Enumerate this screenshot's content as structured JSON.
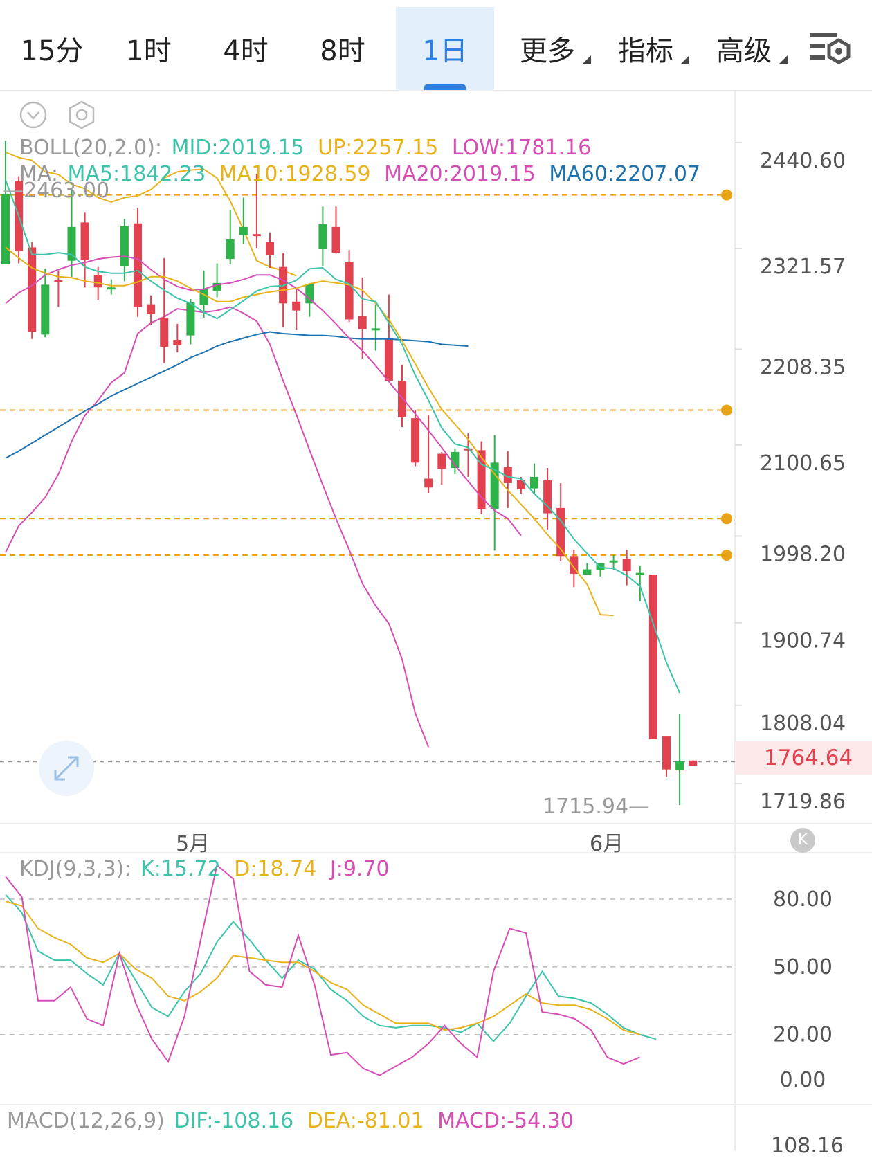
{
  "tabs": [
    {
      "label": "15分",
      "active": false,
      "dropdown": false
    },
    {
      "label": "1时",
      "active": false,
      "dropdown": false
    },
    {
      "label": "4时",
      "active": false,
      "dropdown": false
    },
    {
      "label": "8时",
      "active": false,
      "dropdown": false
    },
    {
      "label": "1日",
      "active": true,
      "dropdown": false
    },
    {
      "label": "更多",
      "active": false,
      "dropdown": true
    },
    {
      "label": "指标",
      "active": false,
      "dropdown": true
    },
    {
      "label": "高级",
      "active": false,
      "dropdown": true
    }
  ],
  "icons": {
    "settings": "chart-settings-icon",
    "collapse_circle": "chevron-down-circle-icon",
    "hexagon": "hexagon-settings-icon",
    "expand": "expand-arrows-icon",
    "k_badge": "K"
  },
  "legend": {
    "boll": {
      "name": "BOLL(20,2.0):",
      "mid": "MID:2019.15",
      "up": "UP:2257.15",
      "low": "LOW:1781.16"
    },
    "ma": {
      "name": "MA:",
      "ma5": "MA5:1842.23",
      "ma10": "MA10:1928.59",
      "ma20": "MA20:2019.15",
      "ma60": "MA60:2207.07"
    },
    "kdj": {
      "name": "KDJ(9,3,3):",
      "k": "K:15.72",
      "d": "D:18.74",
      "j": "J:9.70"
    },
    "macd": {
      "name": "MACD(12,26,9)",
      "dif": "DIF:-108.16",
      "dea": "DEA:-81.01",
      "macd": "MACD:-54.30"
    }
  },
  "colors": {
    "up": "#2eb24a",
    "down": "#e2424f",
    "ma5": "#3cc3aa",
    "ma10": "#e8b21a",
    "ma20": "#d64db5",
    "ma60": "#1f72b0",
    "accent": "#2f7fe0",
    "price_line": "#e8a317"
  },
  "chart_data": [
    {
      "type": "candlestick",
      "title": "",
      "x_labels": [
        "5月",
        "6月"
      ],
      "y_ticks": [
        "2440.60",
        "2321.57",
        "2208.35",
        "2100.65",
        "1998.20",
        "1900.74",
        "1808.04",
        "1719.86"
      ],
      "ylim": [
        1695,
        2520
      ],
      "current_price": "1764.64",
      "max_label": "2463.00",
      "min_label": "1715.94",
      "price_lines": [
        2402,
        2160,
        2038,
        1997
      ],
      "candles": [
        {
          "o": 2324,
          "h": 2463,
          "l": 2330,
          "c": 2403
        },
        {
          "o": 2418,
          "h": 2423,
          "l": 2325,
          "c": 2339
        },
        {
          "o": 2343,
          "h": 2349,
          "l": 2240,
          "c": 2248
        },
        {
          "o": 2245,
          "h": 2319,
          "l": 2242,
          "c": 2301
        },
        {
          "o": 2306,
          "h": 2317,
          "l": 2276,
          "c": 2304
        },
        {
          "o": 2328,
          "h": 2410,
          "l": 2310,
          "c": 2366
        },
        {
          "o": 2371,
          "h": 2382,
          "l": 2298,
          "c": 2329
        },
        {
          "o": 2312,
          "h": 2321,
          "l": 2284,
          "c": 2298
        },
        {
          "o": 2296,
          "h": 2307,
          "l": 2290,
          "c": 2298
        },
        {
          "o": 2322,
          "h": 2375,
          "l": 2305,
          "c": 2367
        },
        {
          "o": 2370,
          "h": 2387,
          "l": 2265,
          "c": 2276
        },
        {
          "o": 2279,
          "h": 2289,
          "l": 2256,
          "c": 2268
        },
        {
          "o": 2264,
          "h": 2331,
          "l": 2213,
          "c": 2231
        },
        {
          "o": 2239,
          "h": 2257,
          "l": 2225,
          "c": 2233
        },
        {
          "o": 2244,
          "h": 2285,
          "l": 2234,
          "c": 2281
        },
        {
          "o": 2278,
          "h": 2317,
          "l": 2264,
          "c": 2296
        },
        {
          "o": 2294,
          "h": 2325,
          "l": 2287,
          "c": 2303
        },
        {
          "o": 2330,
          "h": 2385,
          "l": 2324,
          "c": 2352
        },
        {
          "o": 2357,
          "h": 2399,
          "l": 2347,
          "c": 2366
        },
        {
          "o": 2358,
          "h": 2425,
          "l": 2342,
          "c": 2356
        },
        {
          "o": 2349,
          "h": 2360,
          "l": 2320,
          "c": 2334
        },
        {
          "o": 2321,
          "h": 2337,
          "l": 2253,
          "c": 2280
        },
        {
          "o": 2282,
          "h": 2296,
          "l": 2250,
          "c": 2272
        },
        {
          "o": 2280,
          "h": 2302,
          "l": 2265,
          "c": 2302
        },
        {
          "o": 2341,
          "h": 2389,
          "l": 2322,
          "c": 2369
        },
        {
          "o": 2366,
          "h": 2389,
          "l": 2336,
          "c": 2337
        },
        {
          "o": 2327,
          "h": 2340,
          "l": 2259,
          "c": 2262
        },
        {
          "o": 2266,
          "h": 2309,
          "l": 2218,
          "c": 2251
        },
        {
          "o": 2251,
          "h": 2279,
          "l": 2227,
          "c": 2252
        },
        {
          "o": 2241,
          "h": 2290,
          "l": 2195,
          "c": 2193
        },
        {
          "o": 2193,
          "h": 2211,
          "l": 2141,
          "c": 2152
        },
        {
          "o": 2151,
          "h": 2160,
          "l": 2097,
          "c": 2101
        },
        {
          "o": 2083,
          "h": 2154,
          "l": 2067,
          "c": 2073
        },
        {
          "o": 2111,
          "h": 2113,
          "l": 2076,
          "c": 2094
        },
        {
          "o": 2095,
          "h": 2117,
          "l": 2088,
          "c": 2113
        },
        {
          "o": 2117,
          "h": 2134,
          "l": 2085,
          "c": 2115
        },
        {
          "o": 2115,
          "h": 2125,
          "l": 2043,
          "c": 2049
        },
        {
          "o": 2049,
          "h": 2132,
          "l": 2002,
          "c": 2101
        },
        {
          "o": 2096,
          "h": 2114,
          "l": 2050,
          "c": 2078
        },
        {
          "o": 2081,
          "h": 2085,
          "l": 2066,
          "c": 2071
        },
        {
          "o": 2072,
          "h": 2100,
          "l": 2065,
          "c": 2085
        },
        {
          "o": 2081,
          "h": 2095,
          "l": 2026,
          "c": 2044
        },
        {
          "o": 2050,
          "h": 2078,
          "l": 1990,
          "c": 1996
        },
        {
          "o": 1996,
          "h": 2003,
          "l": 1961,
          "c": 1976
        },
        {
          "o": 1975,
          "h": 1988,
          "l": 1977,
          "c": 1981
        },
        {
          "o": 1980,
          "h": 1988,
          "l": 1973,
          "c": 1988
        },
        {
          "o": 1989,
          "h": 1997,
          "l": 1980,
          "c": 1991
        },
        {
          "o": 1993,
          "h": 2003,
          "l": 1963,
          "c": 1979
        },
        {
          "o": 1977,
          "h": 1985,
          "l": 1945,
          "c": 1977
        },
        {
          "o": 1975,
          "h": 1975,
          "l": 1790,
          "c": 1790
        },
        {
          "o": 1793,
          "h": 1793,
          "l": 1748,
          "c": 1756
        },
        {
          "o": 1755,
          "h": 1818,
          "l": 1716,
          "c": 1765
        },
        {
          "o": 1766,
          "h": 1766,
          "l": 1762,
          "c": 1760
        }
      ],
      "series": [
        {
          "name": "MA5",
          "values": [
            2419,
            2378,
            2335,
            2335,
            2337,
            2335,
            2321,
            2316,
            2314,
            2314,
            2317,
            2305,
            2295,
            2286,
            2280,
            2270,
            2263,
            2273,
            2283,
            2294,
            2299,
            2300,
            2306,
            2319,
            2320,
            2307,
            2302,
            2285,
            2282,
            2258,
            2234,
            2199,
            2171,
            2140,
            2122,
            2118,
            2099,
            2093,
            2085,
            2083,
            2066,
            2052,
            2036,
            2015,
            1999,
            1983,
            1982,
            1974,
            1962,
            1920,
            1876,
            1842
          ]
        },
        {
          "name": "MA10",
          "values": [
            2343,
            2331,
            2320,
            2314,
            2310,
            2309,
            2305,
            2303,
            2300,
            2300,
            2304,
            2310,
            2310,
            2305,
            2297,
            2290,
            2282,
            2282,
            2287,
            2290,
            2293,
            2295,
            2297,
            2302,
            2305,
            2303,
            2301,
            2295,
            2280,
            2262,
            2238,
            2212,
            2185,
            2161,
            2144,
            2127,
            2107,
            2088,
            2070,
            2054,
            2038,
            2020,
            2004,
            1983,
            1964,
            1930,
            1929
          ]
        },
        {
          "name": "MA20",
          "values": [
            2280,
            2292,
            2300,
            2312,
            2318,
            2323,
            2326,
            2330,
            2332,
            2333,
            2330,
            2318,
            2307,
            2299,
            2295,
            2296,
            2301,
            2303,
            2307,
            2312,
            2312,
            2306,
            2297,
            2285,
            2272,
            2257,
            2241,
            2227,
            2210,
            2192,
            2174,
            2156,
            2137,
            2118,
            2098,
            2080,
            2062,
            2047,
            2038,
            2019
          ]
        },
        {
          "name": "MA60",
          "values": [
            2106,
            2114,
            2123,
            2132,
            2141,
            2150,
            2159,
            2167,
            2176,
            2183,
            2190,
            2197,
            2204,
            2211,
            2219,
            2225,
            2232,
            2237,
            2241,
            2245,
            2248,
            2246,
            2245,
            2244,
            2244,
            2243,
            2241,
            2240,
            2240,
            2240,
            2239,
            2238,
            2237,
            2234,
            2233,
            2232
          ]
        },
        {
          "name": "UP",
          "values": [
            2450,
            2444,
            2441,
            2428,
            2425,
            2414,
            2409,
            2399,
            2394,
            2399,
            2401,
            2408,
            2421,
            2428,
            2430,
            2431,
            2421,
            2395,
            2363,
            2328,
            2321,
            2317,
            2311
          ]
        },
        {
          "name": "LOW",
          "values": [
            2000,
            2030,
            2045,
            2062,
            2088,
            2125,
            2154,
            2171,
            2191,
            2202,
            2246,
            2258,
            2265,
            2274,
            2272,
            2270,
            2272,
            2276,
            2269,
            2260,
            2234,
            2193,
            2155,
            2115,
            2076,
            2038,
            2003,
            1965,
            1940,
            1920,
            1880,
            1819,
            1781
          ]
        }
      ]
    },
    {
      "type": "line",
      "title": "",
      "y_ticks": [
        "80.00",
        "50.00",
        "20.00",
        "0.00"
      ],
      "ylim": [
        0,
        100
      ],
      "series": [
        {
          "name": "K",
          "values": [
            82,
            74,
            57,
            53,
            53,
            47,
            42,
            56,
            44,
            32,
            28,
            39,
            47,
            61,
            70,
            62,
            53,
            45,
            53,
            49,
            40,
            35,
            28,
            24,
            23,
            24,
            24,
            23,
            21,
            25,
            17,
            25,
            37,
            48,
            37,
            36,
            34,
            29,
            23,
            20,
            18
          ]
        },
        {
          "name": "D",
          "values": [
            79,
            77,
            67,
            63,
            60,
            54,
            52,
            56,
            49,
            45,
            37,
            35,
            39,
            45,
            55,
            54,
            53,
            52,
            52,
            48,
            43,
            40,
            33,
            29,
            25,
            25,
            25,
            22,
            23,
            25,
            28,
            33,
            38,
            34,
            33,
            33,
            31,
            27,
            22,
            20
          ]
        },
        {
          "name": "J",
          "values": [
            90,
            81,
            35,
            35,
            41,
            27,
            24,
            56,
            34,
            18,
            8,
            28,
            62,
            95,
            89,
            48,
            42,
            41,
            64,
            42,
            11,
            12,
            5,
            2,
            6,
            10,
            16,
            24,
            16,
            10,
            48,
            67,
            65,
            30,
            29,
            27,
            22,
            10,
            7,
            10
          ]
        }
      ]
    },
    {
      "type": "bar",
      "title": "",
      "y_ticks": [
        "108.16"
      ],
      "series": [
        {
          "name": "DIF",
          "values": [
            -108.16
          ]
        },
        {
          "name": "DEA",
          "values": [
            -81.01
          ]
        },
        {
          "name": "MACD",
          "values": [
            -54.3
          ]
        }
      ]
    }
  ]
}
